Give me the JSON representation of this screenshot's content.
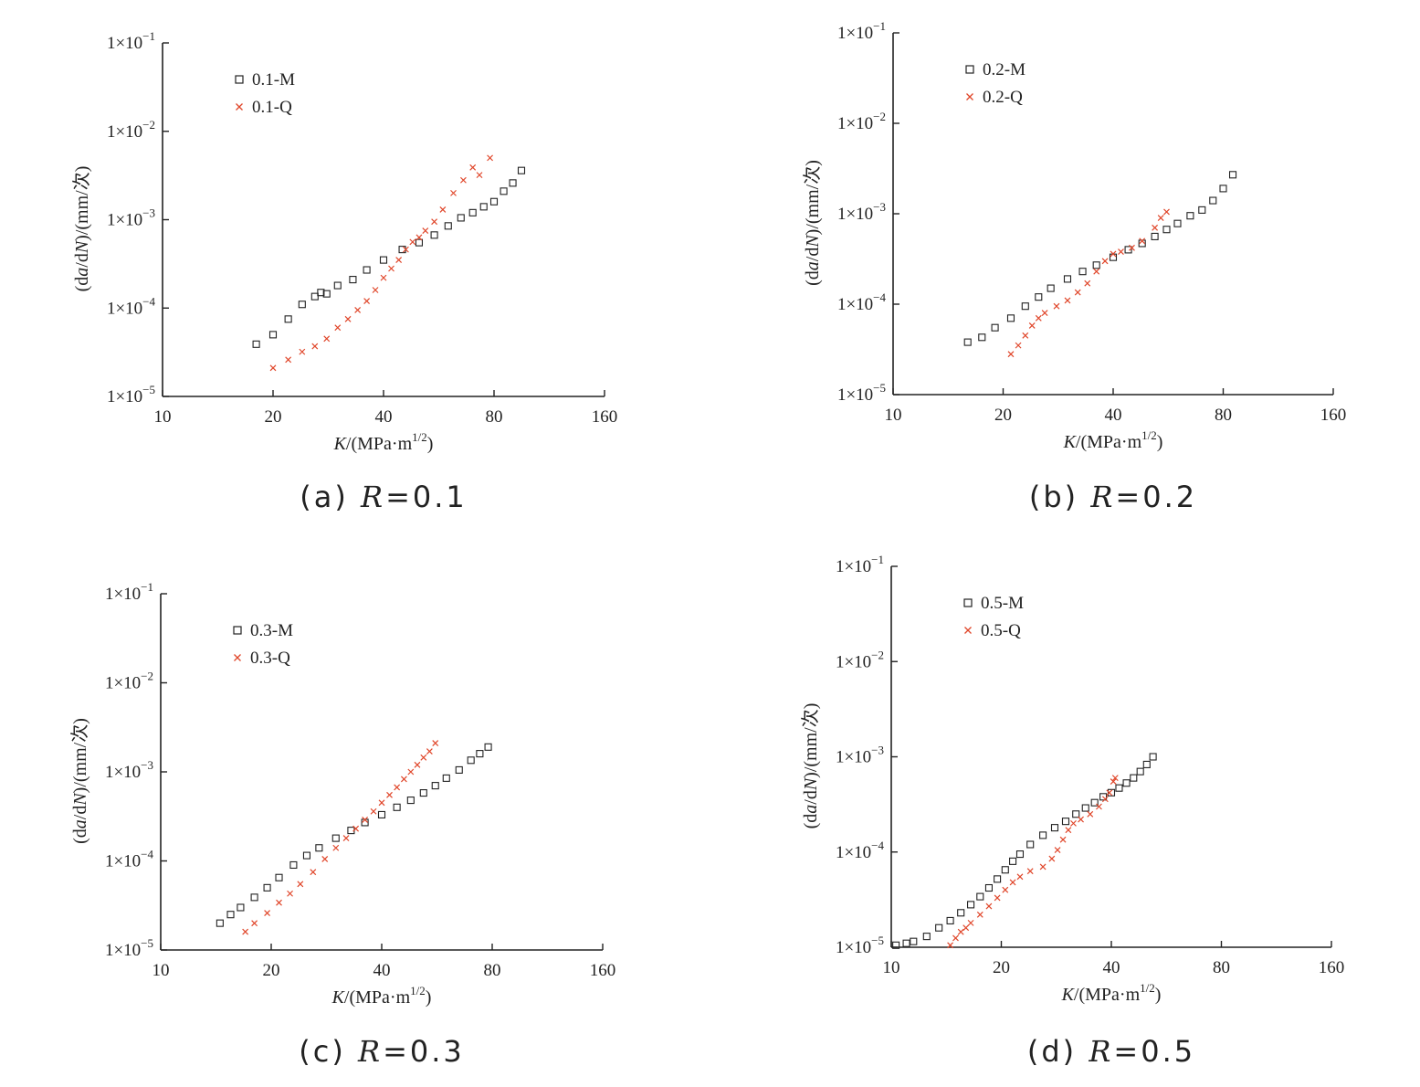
{
  "chart_data": [
    {
      "type": "scatter",
      "panel": "(a)",
      "caption": {
        "prefix": "(a)",
        "var": "R",
        "eq": "=",
        "value": "0.1"
      },
      "xscale": "log",
      "yscale": "log",
      "xlim": [
        10,
        160
      ],
      "ylim": [
        1e-05,
        0.1
      ],
      "xticks": [
        10,
        20,
        40,
        80,
        160
      ],
      "xtick_labels": [
        "10",
        "20",
        "40",
        "80",
        "160"
      ],
      "yticks": [
        1e-05,
        0.0001,
        0.001,
        0.01,
        0.1
      ],
      "ytick_labels": [
        {
          "base": "1×10",
          "exp": "−5"
        },
        {
          "base": "1×10",
          "exp": "−4"
        },
        {
          "base": "1×10",
          "exp": "−3"
        },
        {
          "base": "1×10",
          "exp": "−2"
        },
        {
          "base": "1×10",
          "exp": "−1"
        }
      ],
      "xlabel": {
        "var": "K",
        "unit": "/(MPa·m",
        "exp": "1/2",
        "close": ")"
      },
      "ylabel": {
        "pre": "(d",
        "a": "a",
        "mid": "/d",
        "N": "N",
        "post": ")/(mm/次)"
      },
      "legend_position": "top-left",
      "series": [
        {
          "name": "0.1-M",
          "marker": "square",
          "color": "#222222",
          "points": [
            [
              18,
              3.9e-05
            ],
            [
              20,
              5e-05
            ],
            [
              22,
              7.5e-05
            ],
            [
              24,
              0.00011
            ],
            [
              26,
              0.000135
            ],
            [
              27,
              0.00015
            ],
            [
              28,
              0.000145
            ],
            [
              30,
              0.00018
            ],
            [
              33,
              0.00021
            ],
            [
              36,
              0.00027
            ],
            [
              40,
              0.00035
            ],
            [
              45,
              0.00046
            ],
            [
              50,
              0.00055
            ],
            [
              55,
              0.00067
            ],
            [
              60,
              0.00085
            ],
            [
              65,
              0.00105
            ],
            [
              70,
              0.0012
            ],
            [
              75,
              0.0014
            ],
            [
              80,
              0.0016
            ],
            [
              85,
              0.0021
            ],
            [
              90,
              0.0026
            ],
            [
              95,
              0.0036
            ]
          ]
        },
        {
          "name": "0.1-Q",
          "marker": "x",
          "color": "#e0462a",
          "points": [
            [
              20,
              2.1e-05
            ],
            [
              22,
              2.6e-05
            ],
            [
              24,
              3.2e-05
            ],
            [
              26,
              3.7e-05
            ],
            [
              28,
              4.5e-05
            ],
            [
              30,
              6e-05
            ],
            [
              32,
              7.5e-05
            ],
            [
              34,
              9.5e-05
            ],
            [
              36,
              0.00012
            ],
            [
              38,
              0.00016
            ],
            [
              40,
              0.00022
            ],
            [
              42,
              0.00028
            ],
            [
              44,
              0.00035
            ],
            [
              46,
              0.00046
            ],
            [
              48,
              0.00056
            ],
            [
              50,
              0.00063
            ],
            [
              52,
              0.00075
            ],
            [
              55,
              0.00095
            ],
            [
              58,
              0.0013
            ],
            [
              62,
              0.002
            ],
            [
              66,
              0.0028
            ],
            [
              70,
              0.0039
            ],
            [
              73,
              0.0032
            ],
            [
              78,
              0.005
            ]
          ]
        }
      ]
    },
    {
      "type": "scatter",
      "panel": "(b)",
      "caption": {
        "prefix": "(b)",
        "var": "R",
        "eq": "=",
        "value": "0.2"
      },
      "xscale": "log",
      "yscale": "log",
      "xlim": [
        10,
        160
      ],
      "ylim": [
        1e-05,
        0.1
      ],
      "xticks": [
        10,
        20,
        40,
        80,
        160
      ],
      "xtick_labels": [
        "10",
        "20",
        "40",
        "80",
        "160"
      ],
      "yticks": [
        1e-05,
        0.0001,
        0.001,
        0.01,
        0.1
      ],
      "ytick_labels": [
        {
          "base": "1×10",
          "exp": "−5"
        },
        {
          "base": "1×10",
          "exp": "−4"
        },
        {
          "base": "1×10",
          "exp": "−3"
        },
        {
          "base": "1×10",
          "exp": "−2"
        },
        {
          "base": "1×10",
          "exp": "−1"
        }
      ],
      "xlabel": {
        "var": "K",
        "unit": "/(MPa·m",
        "exp": "1/2",
        "close": ")"
      },
      "ylabel": {
        "pre": "(d",
        "a": "a",
        "mid": "/d",
        "N": "N",
        "post": ")/(mm/次)"
      },
      "legend_position": "top-left",
      "series": [
        {
          "name": "0.2-M",
          "marker": "square",
          "color": "#222222",
          "points": [
            [
              16,
              3.8e-05
            ],
            [
              17.5,
              4.3e-05
            ],
            [
              19,
              5.5e-05
            ],
            [
              21,
              7e-05
            ],
            [
              23,
              9.5e-05
            ],
            [
              25,
              0.00012
            ],
            [
              27,
              0.00015
            ],
            [
              30,
              0.00019
            ],
            [
              33,
              0.00023
            ],
            [
              36,
              0.00027
            ],
            [
              40,
              0.00033
            ],
            [
              44,
              0.0004
            ],
            [
              48,
              0.00047
            ],
            [
              52,
              0.00056
            ],
            [
              56,
              0.00067
            ],
            [
              60,
              0.00078
            ],
            [
              65,
              0.00095
            ],
            [
              70,
              0.0011
            ],
            [
              75,
              0.0014
            ],
            [
              80,
              0.0019
            ],
            [
              85,
              0.0027
            ]
          ]
        },
        {
          "name": "0.2-Q",
          "marker": "x",
          "color": "#e0462a",
          "points": [
            [
              21,
              2.8e-05
            ],
            [
              22,
              3.5e-05
            ],
            [
              23,
              4.5e-05
            ],
            [
              24,
              5.8e-05
            ],
            [
              25,
              7e-05
            ],
            [
              26,
              8e-05
            ],
            [
              28,
              9.5e-05
            ],
            [
              30,
              0.00011
            ],
            [
              32,
              0.000135
            ],
            [
              34,
              0.00017
            ],
            [
              36,
              0.00023
            ],
            [
              38,
              0.0003
            ],
            [
              40,
              0.00036
            ],
            [
              42,
              0.00038
            ],
            [
              45,
              0.00042
            ],
            [
              48,
              0.0005
            ],
            [
              52,
              0.0007
            ],
            [
              54,
              0.0009
            ],
            [
              56,
              0.00105
            ]
          ]
        }
      ]
    },
    {
      "type": "scatter",
      "panel": "(c)",
      "caption": {
        "prefix": "(c)",
        "var": "R",
        "eq": "=",
        "value": "0.3"
      },
      "xscale": "log",
      "yscale": "log",
      "xlim": [
        10,
        160
      ],
      "ylim": [
        1e-05,
        0.1
      ],
      "xticks": [
        10,
        20,
        40,
        80,
        160
      ],
      "xtick_labels": [
        "10",
        "20",
        "40",
        "80",
        "160"
      ],
      "yticks": [
        1e-05,
        0.0001,
        0.001,
        0.01,
        0.1
      ],
      "ytick_labels": [
        {
          "base": "1×10",
          "exp": "−5"
        },
        {
          "base": "1×10",
          "exp": "−4"
        },
        {
          "base": "1×10",
          "exp": "−3"
        },
        {
          "base": "1×10",
          "exp": "−2"
        },
        {
          "base": "1×10",
          "exp": "−1"
        }
      ],
      "xlabel": {
        "var": "K",
        "unit": "/(MPa·m",
        "exp": "1/2",
        "close": ")"
      },
      "ylabel": {
        "pre": "(d",
        "a": "a",
        "mid": "/d",
        "N": "N",
        "post": ")/(mm/次)"
      },
      "legend_position": "top-left",
      "series": [
        {
          "name": "0.3-M",
          "marker": "square",
          "color": "#222222",
          "points": [
            [
              14.5,
              2e-05
            ],
            [
              15.5,
              2.5e-05
            ],
            [
              16.5,
              3e-05
            ],
            [
              18,
              3.9e-05
            ],
            [
              19.5,
              5e-05
            ],
            [
              21,
              6.5e-05
            ],
            [
              23,
              9e-05
            ],
            [
              25,
              0.000115
            ],
            [
              27,
              0.00014
            ],
            [
              30,
              0.00018
            ],
            [
              33,
              0.00022
            ],
            [
              36,
              0.00027
            ],
            [
              40,
              0.00033
            ],
            [
              44,
              0.0004
            ],
            [
              48,
              0.00048
            ],
            [
              52,
              0.00058
            ],
            [
              56,
              0.0007
            ],
            [
              60,
              0.00085
            ],
            [
              65,
              0.00105
            ],
            [
              70,
              0.00135
            ],
            [
              74,
              0.0016
            ],
            [
              78,
              0.0019
            ]
          ]
        },
        {
          "name": "0.3-Q",
          "marker": "x",
          "color": "#e0462a",
          "points": [
            [
              17,
              1.6e-05
            ],
            [
              18,
              2e-05
            ],
            [
              19.5,
              2.6e-05
            ],
            [
              21,
              3.4e-05
            ],
            [
              22.5,
              4.3e-05
            ],
            [
              24,
              5.5e-05
            ],
            [
              26,
              7.5e-05
            ],
            [
              28,
              0.000105
            ],
            [
              30,
              0.00014
            ],
            [
              32,
              0.00018
            ],
            [
              34,
              0.00023
            ],
            [
              36,
              0.00029
            ],
            [
              38,
              0.00036
            ],
            [
              40,
              0.00045
            ],
            [
              42,
              0.00055
            ],
            [
              44,
              0.00067
            ],
            [
              46,
              0.00083
            ],
            [
              48,
              0.001
            ],
            [
              50,
              0.0012
            ],
            [
              52,
              0.00145
            ],
            [
              54,
              0.0017
            ],
            [
              56,
              0.0021
            ]
          ]
        }
      ]
    },
    {
      "type": "scatter",
      "panel": "(d)",
      "caption": {
        "prefix": "(d)",
        "var": "R",
        "eq": "=",
        "value": "0.5"
      },
      "xscale": "log",
      "yscale": "log",
      "xlim": [
        10,
        160
      ],
      "ylim": [
        1e-05,
        0.1
      ],
      "xticks": [
        10,
        20,
        40,
        80,
        160
      ],
      "xtick_labels": [
        "10",
        "20",
        "40",
        "80",
        "160"
      ],
      "yticks": [
        1e-05,
        0.0001,
        0.001,
        0.01,
        0.1
      ],
      "ytick_labels": [
        {
          "base": "1×10",
          "exp": "−5"
        },
        {
          "base": "1×10",
          "exp": "−4"
        },
        {
          "base": "1×10",
          "exp": "−3"
        },
        {
          "base": "1×10",
          "exp": "−2"
        },
        {
          "base": "1×10",
          "exp": "−1"
        }
      ],
      "xlabel": {
        "var": "K",
        "unit": "/(MPa·m",
        "exp": "1/2",
        "close": ")"
      },
      "ylabel": {
        "pre": "(d",
        "a": "a",
        "mid": "/d",
        "N": "N",
        "post": ")/(mm/次)"
      },
      "legend_position": "top-left",
      "series": [
        {
          "name": "0.5-M",
          "marker": "square",
          "color": "#222222",
          "points": [
            [
              10.3,
              1.05e-05
            ],
            [
              11,
              1.1e-05
            ],
            [
              11.5,
              1.15e-05
            ],
            [
              12.5,
              1.3e-05
            ],
            [
              13.5,
              1.6e-05
            ],
            [
              14.5,
              1.9e-05
            ],
            [
              15.5,
              2.3e-05
            ],
            [
              16.5,
              2.8e-05
            ],
            [
              17.5,
              3.4e-05
            ],
            [
              18.5,
              4.2e-05
            ],
            [
              19.5,
              5.2e-05
            ],
            [
              20.5,
              6.5e-05
            ],
            [
              21.5,
              8e-05
            ],
            [
              22.5,
              9.5e-05
            ],
            [
              24,
              0.00012
            ],
            [
              26,
              0.00015
            ],
            [
              28,
              0.00018
            ],
            [
              30,
              0.00021
            ],
            [
              32,
              0.00025
            ],
            [
              34,
              0.00029
            ],
            [
              36,
              0.00033
            ],
            [
              38,
              0.00038
            ],
            [
              40,
              0.00042
            ],
            [
              42,
              0.00047
            ],
            [
              44,
              0.00053
            ],
            [
              46,
              0.0006
            ],
            [
              48,
              0.0007
            ],
            [
              50,
              0.00083
            ],
            [
              52,
              0.001
            ]
          ]
        },
        {
          "name": "0.5-Q",
          "marker": "x",
          "color": "#e0462a",
          "points": [
            [
              14.5,
              1.05e-05
            ],
            [
              15,
              1.25e-05
            ],
            [
              15.5,
              1.45e-05
            ],
            [
              16,
              1.6e-05
            ],
            [
              16.5,
              1.8e-05
            ],
            [
              17.5,
              2.2e-05
            ],
            [
              18.5,
              2.7e-05
            ],
            [
              19.5,
              3.3e-05
            ],
            [
              20.5,
              4e-05
            ],
            [
              21.5,
              4.8e-05
            ],
            [
              22.5,
              5.5e-05
            ],
            [
              24,
              6.3e-05
            ],
            [
              26,
              7e-05
            ],
            [
              27.5,
              8.5e-05
            ],
            [
              28.5,
              0.000105
            ],
            [
              29.5,
              0.000135
            ],
            [
              30.5,
              0.00017
            ],
            [
              31.5,
              0.0002
            ],
            [
              33,
              0.00022
            ],
            [
              35,
              0.00025
            ],
            [
              37,
              0.0003
            ],
            [
              38.5,
              0.00036
            ],
            [
              39.5,
              0.00042
            ],
            [
              40.5,
              0.00055
            ],
            [
              41,
              0.0006
            ]
          ]
        }
      ]
    }
  ]
}
